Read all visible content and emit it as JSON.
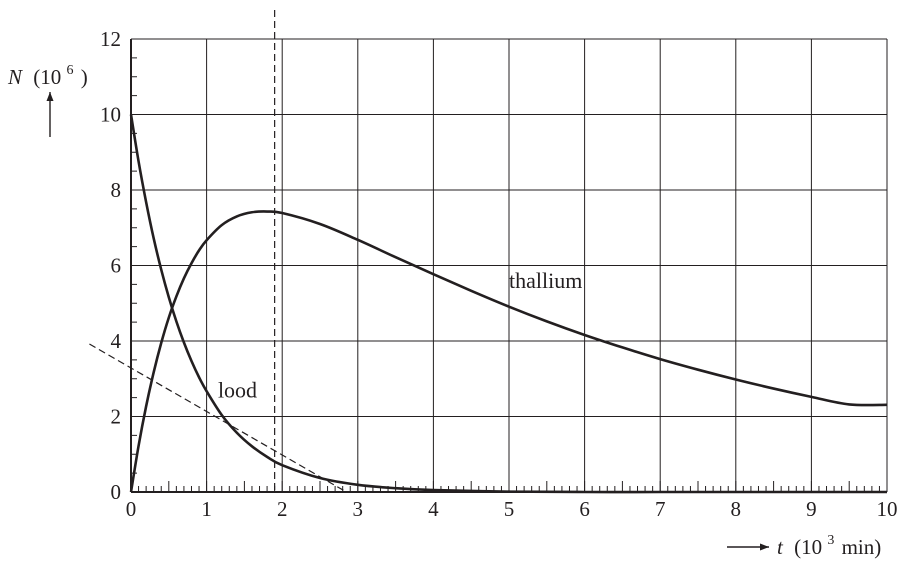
{
  "chart_data": {
    "type": "line",
    "title": "",
    "xlabel": {
      "symbol": "t",
      "unit_open": "(10",
      "unit_exp": "3",
      "unit_close": "min)"
    },
    "ylabel": {
      "symbol": "N",
      "unit_open": "(10",
      "unit_exp": "6",
      "unit_close": ")"
    },
    "xlim": [
      0,
      10
    ],
    "ylim": [
      0,
      12
    ],
    "x_ticks": [
      0,
      1,
      2,
      3,
      4,
      5,
      6,
      7,
      8,
      9,
      10
    ],
    "x_tick_labels": [
      "0",
      "1",
      "2",
      "3",
      "4",
      "5",
      "6",
      "7",
      "8",
      "9",
      "10"
    ],
    "y_ticks": [
      0,
      2,
      4,
      6,
      8,
      10,
      12
    ],
    "y_tick_labels": [
      "0",
      "2",
      "4",
      "6",
      "8",
      "10",
      "12"
    ],
    "x_minor_step": 0.1,
    "y_minor_step": 0.5,
    "grid": true,
    "series": [
      {
        "name": "lood",
        "style": "solid",
        "x": [
          0,
          0.1,
          0.2,
          0.3,
          0.4,
          0.5,
          0.6,
          0.7,
          0.8,
          0.9,
          1.0,
          1.2,
          1.4,
          1.6,
          1.8,
          2.0,
          2.5,
          3.0,
          3.5,
          4.0,
          5.0,
          6.0,
          7.0,
          8.0,
          9.0,
          10.0
        ],
        "y": [
          10.0,
          8.76,
          7.68,
          6.72,
          5.89,
          5.16,
          4.52,
          3.96,
          3.47,
          3.04,
          2.67,
          2.04,
          1.57,
          1.21,
          0.93,
          0.71,
          0.37,
          0.19,
          0.1,
          0.05,
          0.01,
          0.0,
          0.0,
          0.0,
          0.0,
          0.0
        ]
      },
      {
        "name": "thallium",
        "style": "solid",
        "x": [
          0,
          0.1,
          0.2,
          0.3,
          0.4,
          0.5,
          0.6,
          0.7,
          0.8,
          0.9,
          1.0,
          1.2,
          1.4,
          1.6,
          1.8,
          2.0,
          2.5,
          3.0,
          3.5,
          4.0,
          4.5,
          5.0,
          5.5,
          6.0,
          6.5,
          7.0,
          7.5,
          8.0,
          8.5,
          9.0,
          9.5,
          10.0
        ],
        "y": [
          0,
          1.22,
          2.27,
          3.17,
          3.95,
          4.62,
          5.18,
          5.66,
          6.06,
          6.4,
          6.67,
          7.07,
          7.3,
          7.41,
          7.43,
          7.39,
          7.1,
          6.68,
          6.22,
          5.77,
          5.33,
          4.91,
          4.52,
          4.16,
          3.83,
          3.52,
          3.24,
          2.98,
          2.74,
          2.52,
          2.32,
          2.31
        ]
      }
    ],
    "reference_lines": [
      {
        "type": "vertical",
        "style": "dashed",
        "x": 1.9
      },
      {
        "type": "tangent",
        "style": "dashed",
        "x": [
          -0.55,
          2.85
        ],
        "y": [
          3.92,
          0.0
        ]
      }
    ],
    "annotations": [
      {
        "text": "lood",
        "x": 1.15,
        "y": 2.5
      },
      {
        "text": "thallium",
        "x": 5.0,
        "y": 5.4
      }
    ]
  }
}
